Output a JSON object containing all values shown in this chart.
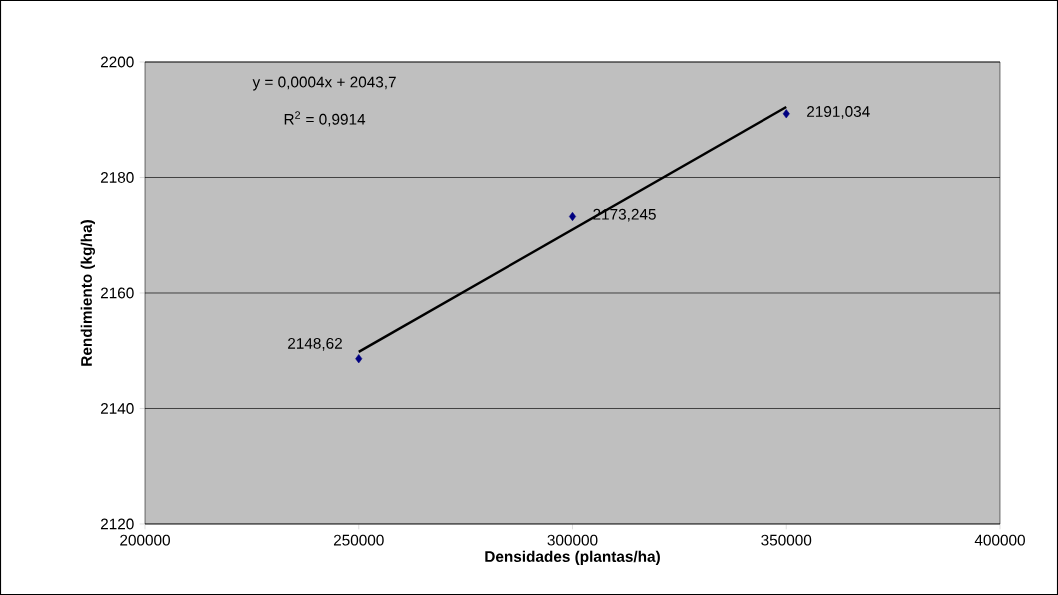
{
  "chart_data": {
    "type": "scatter",
    "xlabel": "Densidades (plantas/ha)",
    "ylabel": "Rendimiento (kg/ha)",
    "annotations": [
      "y = 0,0004x + 2043,7",
      "R$^{2}$ = 0,9914"
    ],
    "xlim": [
      200000,
      400000
    ],
    "ylim": [
      2120,
      2200
    ],
    "xticks": [
      200000,
      250000,
      300000,
      350000,
      400000
    ],
    "yticks": [
      2120,
      2140,
      2160,
      2180,
      2200
    ],
    "grid": "y",
    "series": [
      {
        "color": "#000080",
        "marker": "diamond",
        "x": [
          250000,
          300000,
          350000
        ],
        "values": [
          2148.62,
          2173.245,
          2191.034
        ],
        "value_labels": [
          "2148,62",
          "2173,245",
          "2191,034"
        ]
      },
      {
        "type": "line",
        "color": "#000000",
        "marker": "none",
        "line_style": "solid",
        "x": [
          250000,
          350000
        ],
        "values": [
          2149.8,
          2192.2
        ]
      }
    ]
  }
}
